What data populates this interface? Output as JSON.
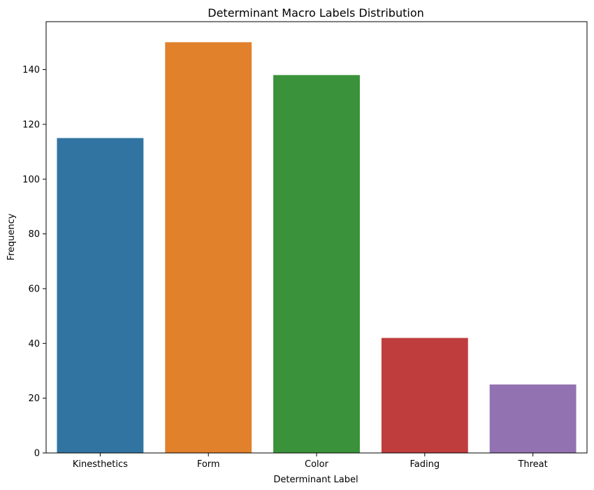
{
  "chart_data": {
    "type": "bar",
    "title": "Determinant Macro Labels Distribution",
    "xlabel": "Determinant Label",
    "ylabel": "Frequency",
    "categories": [
      "Kinesthetics",
      "Form",
      "Color",
      "Fading",
      "Threat"
    ],
    "values": [
      115,
      150,
      138,
      42,
      25
    ],
    "colors": [
      "#3274a1",
      "#e1812c",
      "#3a923a",
      "#c03d3e",
      "#9372b2"
    ],
    "ylim": [
      0,
      157.5
    ],
    "yticks": [
      0,
      20,
      40,
      60,
      80,
      100,
      120,
      140
    ],
    "grid": false,
    "legend": false
  }
}
